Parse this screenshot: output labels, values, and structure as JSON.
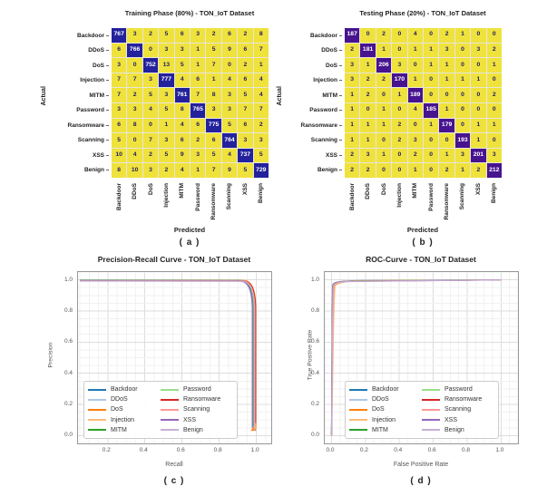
{
  "colors": {
    "heatmap_cell": "#f0e23c",
    "heatmap_diag_train": "#23219c",
    "heatmap_diag_test": "#47138f",
    "heatmap_text_on_cell": "#1d1d66",
    "heatmap_text_on_diag": "#ffffff",
    "grid_minor": "#f1f1f1",
    "grid_major": "#dddddd"
  },
  "chart_data": [
    {
      "type": "heatmap",
      "title": "Training Phase (80%) - TON_IoT Dataset",
      "xlabel": "Predicted",
      "ylabel": "Actual",
      "caption": "( a )",
      "labels": [
        "Backdoor",
        "DDoS",
        "DoS",
        "Injection",
        "MITM",
        "Password",
        "Ransomware",
        "Scanning",
        "XSS",
        "Benign"
      ],
      "matrix": [
        [
          767,
          3,
          2,
          5,
          6,
          3,
          2,
          6,
          2,
          8
        ],
        [
          6,
          766,
          0,
          3,
          3,
          1,
          5,
          9,
          6,
          7
        ],
        [
          3,
          0,
          752,
          13,
          5,
          1,
          7,
          0,
          2,
          1
        ],
        [
          7,
          7,
          3,
          777,
          4,
          6,
          1,
          4,
          6,
          4
        ],
        [
          7,
          2,
          5,
          3,
          761,
          7,
          8,
          3,
          5,
          4
        ],
        [
          3,
          3,
          4,
          5,
          8,
          765,
          3,
          3,
          7,
          7
        ],
        [
          6,
          8,
          0,
          1,
          4,
          6,
          775,
          5,
          6,
          2
        ],
        [
          5,
          0,
          7,
          3,
          6,
          2,
          6,
          764,
          3,
          3
        ],
        [
          10,
          4,
          2,
          5,
          9,
          3,
          5,
          4,
          737,
          5
        ],
        [
          8,
          10,
          3,
          2,
          4,
          1,
          7,
          9,
          5,
          729
        ]
      ]
    },
    {
      "type": "heatmap",
      "title": "Testing Phase (20%) - TON_IoT Dataset",
      "xlabel": "Predicted",
      "ylabel": "Actual",
      "caption": "( b )",
      "labels": [
        "Backdoor",
        "DDoS",
        "DoS",
        "Injection",
        "MITM",
        "Password",
        "Ransomware",
        "Scanning",
        "XSS",
        "Benign"
      ],
      "matrix": [
        [
          187,
          0,
          2,
          0,
          4,
          0,
          2,
          1,
          0,
          0
        ],
        [
          2,
          181,
          1,
          0,
          1,
          1,
          3,
          0,
          3,
          2
        ],
        [
          3,
          1,
          206,
          3,
          0,
          1,
          1,
          0,
          0,
          1
        ],
        [
          3,
          2,
          2,
          170,
          1,
          0,
          1,
          1,
          1,
          0
        ],
        [
          1,
          2,
          0,
          1,
          189,
          0,
          0,
          0,
          0,
          2
        ],
        [
          1,
          0,
          1,
          0,
          4,
          185,
          1,
          0,
          0,
          0
        ],
        [
          1,
          1,
          1,
          2,
          0,
          1,
          179,
          0,
          1,
          1
        ],
        [
          1,
          1,
          0,
          2,
          3,
          0,
          0,
          193,
          1,
          0
        ],
        [
          2,
          3,
          1,
          0,
          2,
          0,
          1,
          3,
          201,
          3
        ],
        [
          2,
          2,
          0,
          0,
          1,
          0,
          2,
          1,
          2,
          212
        ]
      ]
    },
    {
      "type": "line",
      "title": "Precision-Recall Curve - TON_IoT Dataset",
      "xlabel": "Recall",
      "ylabel": "Precision",
      "caption": "( c )",
      "xlim": [
        0.04,
        1.08
      ],
      "ylim": [
        -0.05,
        1.05
      ],
      "xticks": [
        0.2,
        0.4,
        0.6,
        0.8,
        1.0
      ],
      "yticks": [
        0.0,
        0.2,
        0.4,
        0.6,
        0.8,
        1.0
      ],
      "grid": true,
      "legend_position": "lower left",
      "series": [
        {
          "name": "Backdoor",
          "color": "#1f77b4",
          "drop_recall": 0.98,
          "min_precision": 0.06
        },
        {
          "name": "DDoS",
          "color": "#aec7e8",
          "drop_recall": 0.984,
          "min_precision": 0.07
        },
        {
          "name": "DoS",
          "color": "#ff7f0e",
          "drop_recall": 0.997,
          "min_precision": 0.04,
          "marker": {
            "shape": "triangle",
            "x": 0.985,
            "y": 0.045
          }
        },
        {
          "name": "Injection",
          "color": "#ffbb78",
          "drop_recall": 0.993,
          "min_precision": 0.05
        },
        {
          "name": "MITM",
          "color": "#2ca02c",
          "drop_recall": 0.985,
          "min_precision": 0.06
        },
        {
          "name": "Password",
          "color": "#98df8a",
          "drop_recall": 0.988,
          "min_precision": 0.05
        },
        {
          "name": "Ransomware",
          "color": "#d62728",
          "drop_recall": 0.996,
          "min_precision": 0.08
        },
        {
          "name": "Scanning",
          "color": "#ff9896",
          "drop_recall": 0.991,
          "min_precision": 0.06
        },
        {
          "name": "XSS",
          "color": "#9467bd",
          "drop_recall": 0.978,
          "min_precision": 0.05
        },
        {
          "name": "Benign",
          "color": "#c5b0d5",
          "drop_recall": 0.989,
          "min_precision": 0.03
        }
      ]
    },
    {
      "type": "line",
      "title": "ROC-Curve - TON_IoT Dataset",
      "xlabel": "False Positive Rate",
      "ylabel": "True Positive Rate",
      "caption": "( d )",
      "xlim": [
        -0.04,
        1.1
      ],
      "ylim": [
        -0.05,
        1.05
      ],
      "xticks": [
        0.0,
        0.2,
        0.4,
        0.6,
        0.8,
        1.0
      ],
      "yticks": [
        0.0,
        0.2,
        0.4,
        0.6,
        0.8,
        1.0
      ],
      "grid": true,
      "legend_position": "lower right",
      "series": [
        {
          "name": "Backdoor",
          "color": "#1f77b4",
          "rise_fpr": 0.006
        },
        {
          "name": "DDoS",
          "color": "#aec7e8",
          "rise_fpr": 0.01
        },
        {
          "name": "DoS",
          "color": "#ff7f0e",
          "rise_fpr": 0.016
        },
        {
          "name": "Injection",
          "color": "#ffbb78",
          "rise_fpr": 0.022
        },
        {
          "name": "MITM",
          "color": "#2ca02c",
          "rise_fpr": 0.007
        },
        {
          "name": "Password",
          "color": "#98df8a",
          "rise_fpr": 0.012
        },
        {
          "name": "Ransomware",
          "color": "#d62728",
          "rise_fpr": 0.008
        },
        {
          "name": "Scanning",
          "color": "#ff9896",
          "rise_fpr": 0.014
        },
        {
          "name": "XSS",
          "color": "#9467bd",
          "rise_fpr": 0.007
        },
        {
          "name": "Benign",
          "color": "#c5b0d5",
          "rise_fpr": 0.01
        }
      ]
    }
  ]
}
